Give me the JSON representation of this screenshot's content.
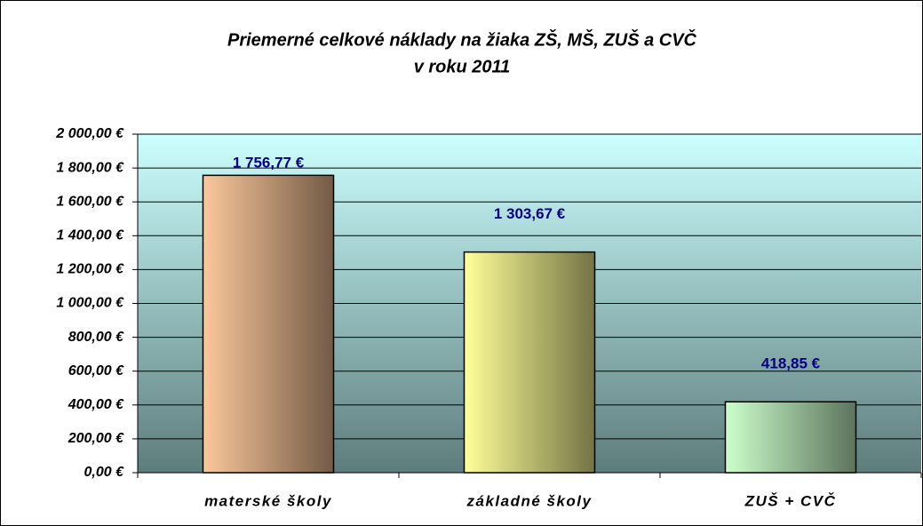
{
  "chart_data": {
    "type": "bar",
    "title": [
      "Priemerné celkové náklady na žiaka ZŠ, MŠ, ZUŠ a CVČ",
      "v roku 2011"
    ],
    "categories": [
      "materské školy",
      "základné školy",
      "ZUŠ + CVČ"
    ],
    "values": [
      1756.77,
      1303.67,
      418.85
    ],
    "value_labels": [
      "1 756,77 €",
      "1 303,67 €",
      "418,85 €"
    ],
    "colors": [
      "#fcc89b",
      "#ffff99",
      "#ccffcc"
    ],
    "ylim": [
      0,
      2000
    ],
    "yticks": [
      {
        "value": 0,
        "label": "0,00 €"
      },
      {
        "value": 200,
        "label": "200,00 €"
      },
      {
        "value": 400,
        "label": "400,00 €"
      },
      {
        "value": 600,
        "label": "600,00 €"
      },
      {
        "value": 800,
        "label": "800,00 €"
      },
      {
        "value": 1000,
        "label": "1 000,00 €"
      },
      {
        "value": 1200,
        "label": "1 200,00 €"
      },
      {
        "value": 1400,
        "label": "1 400,00 €"
      },
      {
        "value": 1600,
        "label": "1 600,00 €"
      },
      {
        "value": 1800,
        "label": "1 800,00 €"
      },
      {
        "value": 2000,
        "label": "2 000,00 €"
      }
    ],
    "grid": true
  }
}
